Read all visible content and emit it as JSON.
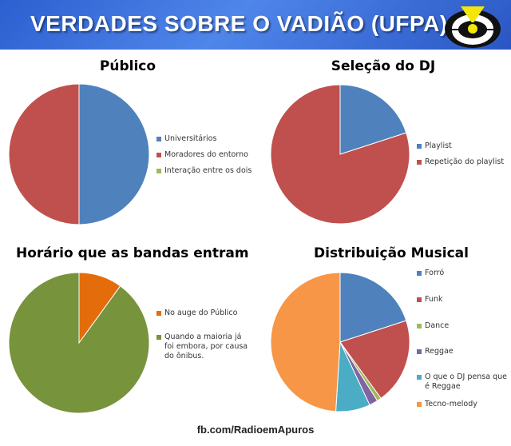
{
  "header": {
    "title": "VERDADES SOBRE O VADIÃO (UFPA)"
  },
  "footer": {
    "text": "fb.com/RadioemApuros"
  },
  "chart_data": [
    {
      "type": "pie",
      "title": "Público",
      "categories": [
        "Universitários",
        "Moradores do entorno",
        "Interação entre os dois"
      ],
      "values": [
        50,
        50,
        0
      ],
      "colors": [
        "#4f81bd",
        "#c0504d",
        "#9bbb59"
      ],
      "legend_position": "right"
    },
    {
      "type": "pie",
      "title": "Seleção do DJ",
      "categories": [
        "Playlist",
        "Repetição do playlist"
      ],
      "values": [
        20,
        80
      ],
      "colors": [
        "#4f81bd",
        "#c0504d"
      ],
      "legend_position": "right"
    },
    {
      "type": "pie",
      "title": "Horário que as bandas entram",
      "categories": [
        "No auge do Público",
        "Quando a maioria já foi embora, por causa do ônibus."
      ],
      "values": [
        10,
        90
      ],
      "colors": [
        "#e46c0a",
        "#77933c"
      ],
      "legend_position": "right"
    },
    {
      "type": "pie",
      "title": "Distribuição Musical",
      "categories": [
        "Forró",
        "Funk",
        "Dance",
        "Reggae",
        "O que o DJ pensa que é Reggae",
        "Tecno-melody"
      ],
      "values": [
        20,
        20,
        1,
        2,
        8,
        49
      ],
      "colors": [
        "#4f81bd",
        "#c0504d",
        "#9bbb59",
        "#8064a2",
        "#4bacc6",
        "#f79646"
      ],
      "legend_position": "right"
    }
  ]
}
